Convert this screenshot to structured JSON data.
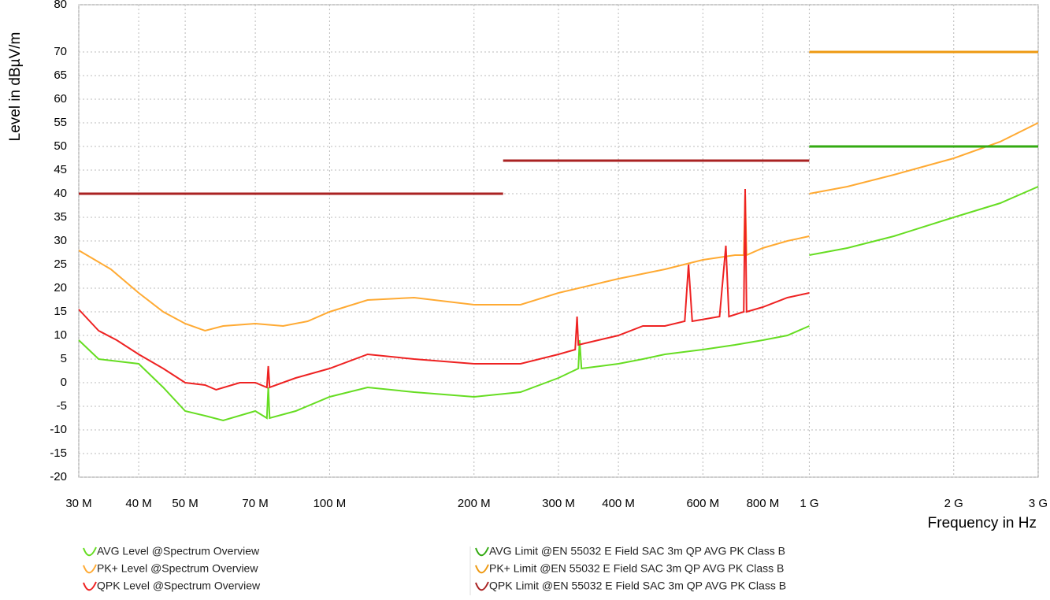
{
  "chart_data": {
    "type": "line",
    "y_label": "Level in dBµV/m",
    "x_label": "Frequency in Hz",
    "log_x": true,
    "grid": true,
    "xlim": [
      30000000,
      3000000000
    ],
    "ylim": [
      -20,
      80
    ],
    "xticks": [
      {
        "value": 30000000,
        "label": "30 M"
      },
      {
        "value": 40000000,
        "label": "40 M"
      },
      {
        "value": 50000000,
        "label": "50 M"
      },
      {
        "value": 70000000,
        "label": "70 M"
      },
      {
        "value": 100000000,
        "label": "100 M"
      },
      {
        "value": 200000000,
        "label": "200 M"
      },
      {
        "value": 300000000,
        "label": "300 M"
      },
      {
        "value": 400000000,
        "label": "400 M"
      },
      {
        "value": 600000000,
        "label": "600 M"
      },
      {
        "value": 800000000,
        "label": "800 M"
      },
      {
        "value": 1000000000,
        "label": "1 G"
      },
      {
        "value": 2000000000,
        "label": "2 G"
      },
      {
        "value": 3000000000,
        "label": "3 G"
      }
    ],
    "yticks": [
      80,
      70,
      65,
      60,
      55,
      50,
      45,
      40,
      35,
      30,
      25,
      20,
      15,
      10,
      5,
      0,
      -5,
      -10,
      -15,
      -20
    ],
    "series": [
      {
        "name": "AVG Level @Spectrum Overview",
        "color": "#66dd22",
        "x": [
          30000000,
          33000000,
          40000000,
          45000000,
          50000000,
          55000000,
          60000000,
          70000000,
          74000000,
          74500000,
          75000000,
          85000000,
          100000000,
          120000000,
          150000000,
          200000000,
          250000000,
          300000000,
          330000000,
          332000000,
          335000000,
          400000000,
          450000000,
          500000000,
          600000000,
          700000000,
          800000000,
          900000000,
          1000000000,
          null,
          1000000000,
          1200000000,
          1500000000,
          2000000000,
          2500000000,
          3000000000
        ],
        "values": [
          9,
          5,
          4,
          -1,
          -6,
          -7,
          -8,
          -6,
          -7.5,
          -1,
          -7.5,
          -6,
          -3,
          -1,
          -2,
          -3,
          -2,
          1,
          3,
          9,
          3,
          4,
          5,
          6,
          7,
          8,
          9,
          10,
          12,
          null,
          27,
          28.5,
          31,
          35,
          38,
          41.5
        ]
      },
      {
        "name": "PK+ Level @Spectrum Overview",
        "color": "#ffaa33",
        "x": [
          30000000,
          35000000,
          40000000,
          45000000,
          50000000,
          55000000,
          60000000,
          70000000,
          80000000,
          90000000,
          100000000,
          120000000,
          150000000,
          200000000,
          250000000,
          300000000,
          400000000,
          500000000,
          600000000,
          700000000,
          730000000,
          735000000,
          740000000,
          800000000,
          900000000,
          1000000000,
          null,
          1000000000,
          1200000000,
          1500000000,
          2000000000,
          2500000000,
          3000000000
        ],
        "values": [
          28,
          24,
          19,
          15,
          12.5,
          11,
          12,
          12.5,
          12,
          13,
          15,
          17.5,
          18,
          16.5,
          16.5,
          19,
          22,
          24,
          26,
          27,
          27,
          40,
          27,
          28.5,
          30,
          31,
          null,
          40,
          41.5,
          44,
          47.5,
          51,
          55
        ]
      },
      {
        "name": "QPK Level @Spectrum Overview",
        "color": "#ee2222",
        "x": [
          30000000,
          33000000,
          36000000,
          40000000,
          45000000,
          50000000,
          55000000,
          58000000,
          65000000,
          70000000,
          74000000,
          74500000,
          75000000,
          85000000,
          100000000,
          120000000,
          150000000,
          200000000,
          250000000,
          300000000,
          325000000,
          328000000,
          330000000,
          400000000,
          450000000,
          500000000,
          550000000,
          560000000,
          570000000,
          650000000,
          670000000,
          680000000,
          730000000,
          735000000,
          740000000,
          800000000,
          900000000,
          1000000000
        ],
        "values": [
          15.5,
          11,
          9,
          6,
          3,
          0,
          -0.5,
          -1.5,
          0,
          0,
          -1,
          3.5,
          -1,
          1,
          3,
          6,
          5,
          4,
          4,
          6,
          7,
          14,
          8,
          10,
          12,
          12,
          13,
          25,
          13,
          14,
          29,
          14,
          15,
          41,
          15,
          16,
          18,
          19
        ]
      },
      {
        "name": "AVG Limit @EN 55032 E Field SAC 3m QP AVG PK Class B",
        "color": "#33aa11",
        "x": [
          1000000000,
          3000000000
        ],
        "values": [
          50,
          50
        ]
      },
      {
        "name": "PK+ Limit @EN 55032 E Field SAC 3m QP AVG PK Class B",
        "color": "#ee9911",
        "x": [
          1000000000,
          3000000000
        ],
        "values": [
          70,
          70
        ]
      },
      {
        "name": "QPK Limit @EN 55032 E Field SAC 3m QP AVG PK Class B",
        "color": "#aa2222",
        "x": [
          30000000,
          230000000,
          null,
          230000000,
          1000000000
        ],
        "values": [
          40,
          40,
          null,
          47,
          47
        ]
      }
    ]
  }
}
